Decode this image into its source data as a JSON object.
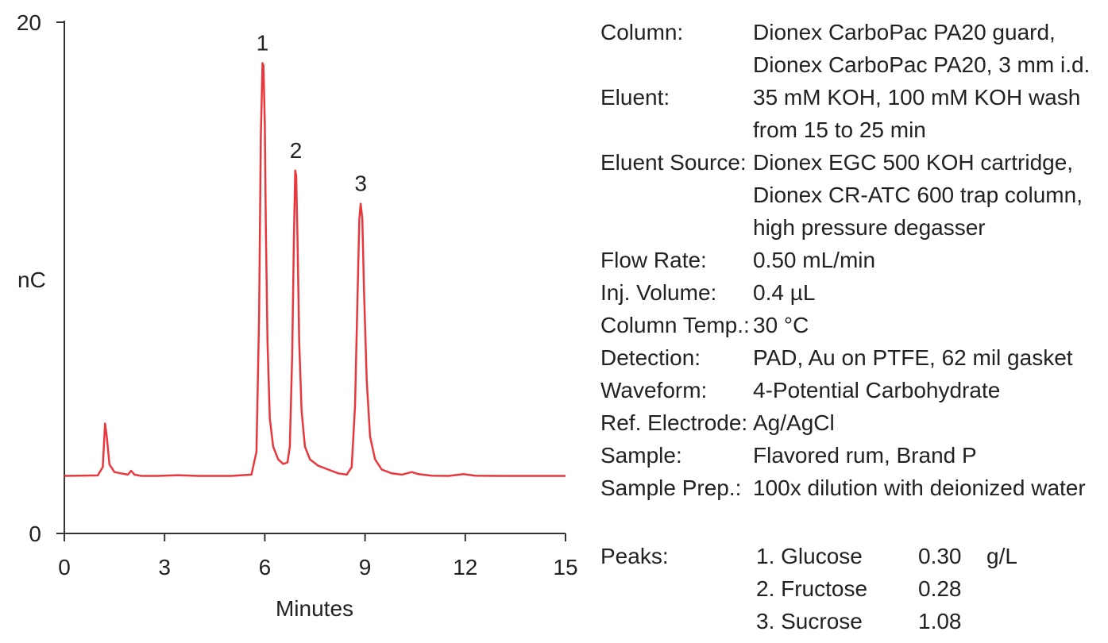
{
  "chart_data": {
    "type": "line",
    "ylabel": "nC",
    "xlabel": "Minutes",
    "xlim": [
      0,
      15
    ],
    "ylim": [
      0,
      20
    ],
    "x_ticks": [
      "0",
      "3",
      "6",
      "9",
      "12",
      "15"
    ],
    "y_ticks": [
      "0",
      "20"
    ],
    "grid": false,
    "series": [
      {
        "color": "#e8383d",
        "x": [
          0,
          1.0,
          1.15,
          1.22,
          1.27,
          1.35,
          1.5,
          1.7,
          1.9,
          2.0,
          2.1,
          2.3,
          2.8,
          3.4,
          4.0,
          5.0,
          5.6,
          5.75,
          5.83,
          5.88,
          5.93,
          5.96,
          6.0,
          6.03,
          6.08,
          6.15,
          6.25,
          6.4,
          6.55,
          6.68,
          6.75,
          6.82,
          6.87,
          6.91,
          6.94,
          6.98,
          7.03,
          7.1,
          7.2,
          7.35,
          7.6,
          7.9,
          8.2,
          8.45,
          8.6,
          8.7,
          8.78,
          8.83,
          8.87,
          8.92,
          8.97,
          9.05,
          9.15,
          9.3,
          9.5,
          9.8,
          10.1,
          10.4,
          10.6,
          11.0,
          11.5,
          11.95,
          12.3,
          13.0,
          14.0,
          15.0
        ],
        "y": [
          2.25,
          2.27,
          2.6,
          4.3,
          3.8,
          2.7,
          2.4,
          2.35,
          2.3,
          2.45,
          2.3,
          2.25,
          2.25,
          2.28,
          2.25,
          2.25,
          2.3,
          3.2,
          8.5,
          15.5,
          18.4,
          18.3,
          16.0,
          12.0,
          7.5,
          4.5,
          3.4,
          2.9,
          2.72,
          2.78,
          3.4,
          7.0,
          11.5,
          14.2,
          14.0,
          11.5,
          7.5,
          4.8,
          3.4,
          2.9,
          2.65,
          2.5,
          2.35,
          2.3,
          2.6,
          5.0,
          9.5,
          12.3,
          12.9,
          12.3,
          9.5,
          6.0,
          3.8,
          2.9,
          2.5,
          2.35,
          2.3,
          2.4,
          2.32,
          2.26,
          2.25,
          2.32,
          2.26,
          2.25,
          2.25,
          2.25
        ]
      }
    ],
    "peak_labels": [
      {
        "text": "1",
        "x": 5.93,
        "y": 18.4
      },
      {
        "text": "2",
        "x": 6.93,
        "y": 14.2
      },
      {
        "text": "3",
        "x": 8.87,
        "y": 12.9
      }
    ]
  },
  "conditions": [
    {
      "label": "Column:",
      "values": [
        "Dionex CarboPac PA20 guard,",
        "Dionex CarboPac PA20, 3 mm i.d."
      ]
    },
    {
      "label": "Eluent:",
      "values": [
        "35 mM KOH, 100 mM KOH wash",
        "from 15 to 25 min"
      ]
    },
    {
      "label": "Eluent Source:",
      "values": [
        "Dionex EGC 500 KOH cartridge,",
        "Dionex CR-ATC 600 trap column,",
        "high pressure degasser"
      ]
    },
    {
      "label": "Flow Rate:",
      "values": [
        "0.50 mL/min"
      ]
    },
    {
      "label": "Inj. Volume:",
      "values": [
        "0.4 µL"
      ]
    },
    {
      "label": "Column Temp.:",
      "values": [
        "30 °C"
      ]
    },
    {
      "label": "Detection:",
      "values": [
        "PAD, Au on PTFE, 62 mil gasket"
      ]
    },
    {
      "label": "Waveform:",
      "values": [
        "4-Potential Carbohydrate"
      ]
    },
    {
      "label": "Ref. Electrode:",
      "values": [
        "Ag/AgCl"
      ]
    },
    {
      "label": "Sample:",
      "values": [
        "Flavored rum, Brand P"
      ]
    },
    {
      "label": "Sample Prep.:",
      "values": [
        "100x dilution with deionized water"
      ]
    }
  ],
  "peaks_table": {
    "label": "Peaks:",
    "unit": "g/L",
    "rows": [
      {
        "name": "1. Glucose",
        "conc": "0.30"
      },
      {
        "name": "2. Fructose",
        "conc": "0.28"
      },
      {
        "name": "3. Sucrose",
        "conc": "1.08"
      }
    ]
  }
}
